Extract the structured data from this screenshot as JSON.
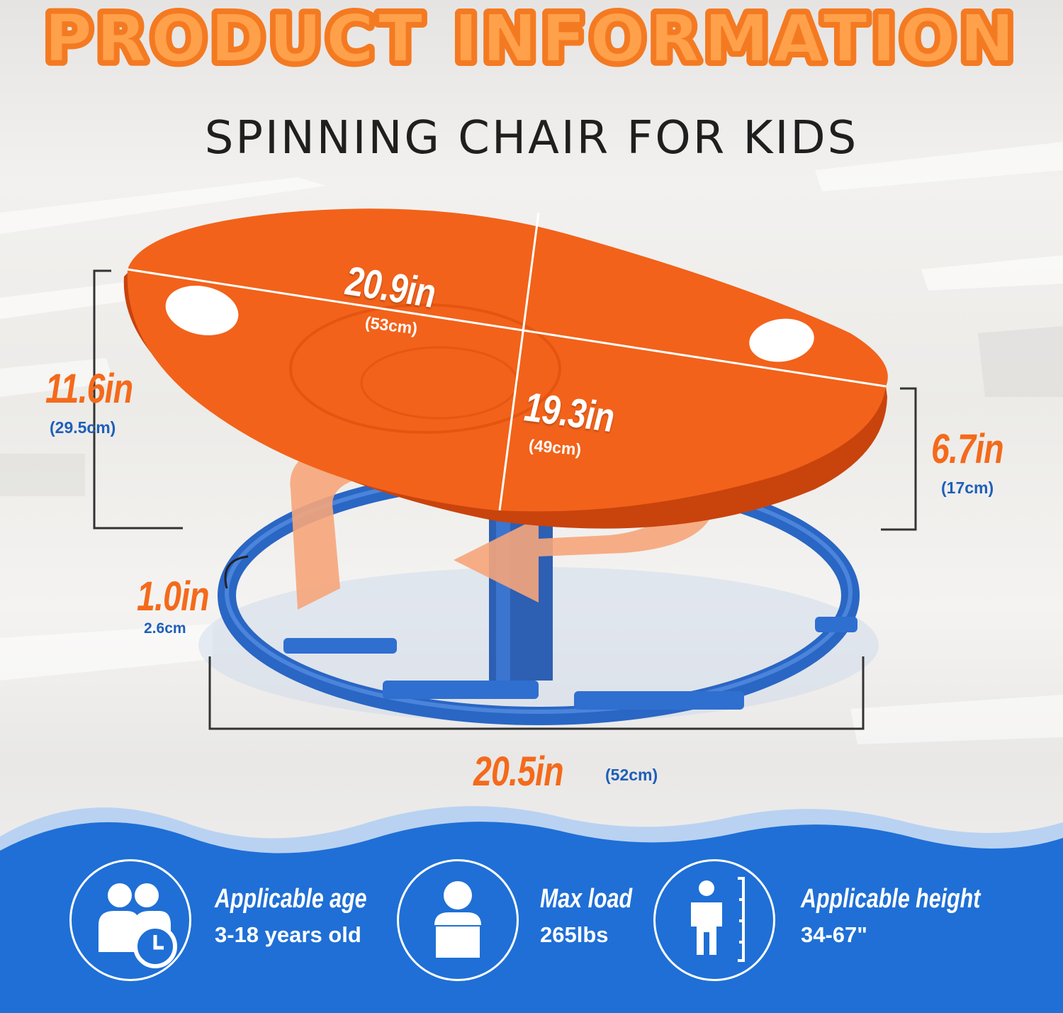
{
  "header": {
    "title": "PRODUCT INFORMATION",
    "subtitle": "SPINNING CHAIR FOR KIDS"
  },
  "dimensions": {
    "seat_length": {
      "imperial": "20.9in",
      "metric": "(53cm)"
    },
    "seat_width": {
      "imperial": "19.3in",
      "metric": "(49cm)"
    },
    "total_height": {
      "imperial": "11.6in",
      "metric": "(29.5cm)"
    },
    "seat_height": {
      "imperial": "6.7in",
      "metric": "(17cm)"
    },
    "tube_diameter": {
      "imperial": "1.0in",
      "metric": "2.6cm"
    },
    "base_width": {
      "imperial": "20.5in",
      "metric": "(52cm)"
    }
  },
  "features": [
    {
      "icon": "age-icon",
      "title": "Applicable age",
      "value": "3-18 years old"
    },
    {
      "icon": "load-icon",
      "title": "Max load",
      "value": "265lbs"
    },
    {
      "icon": "height-icon",
      "title": "Applicable height",
      "value": "34-67\""
    }
  ],
  "colors": {
    "title_orange": "#f47a22",
    "seat_orange": "#f2621a",
    "ring_blue": "#2f6fd0",
    "band_blue": "#1f6fd6",
    "label_blue": "#1f5fb8"
  }
}
